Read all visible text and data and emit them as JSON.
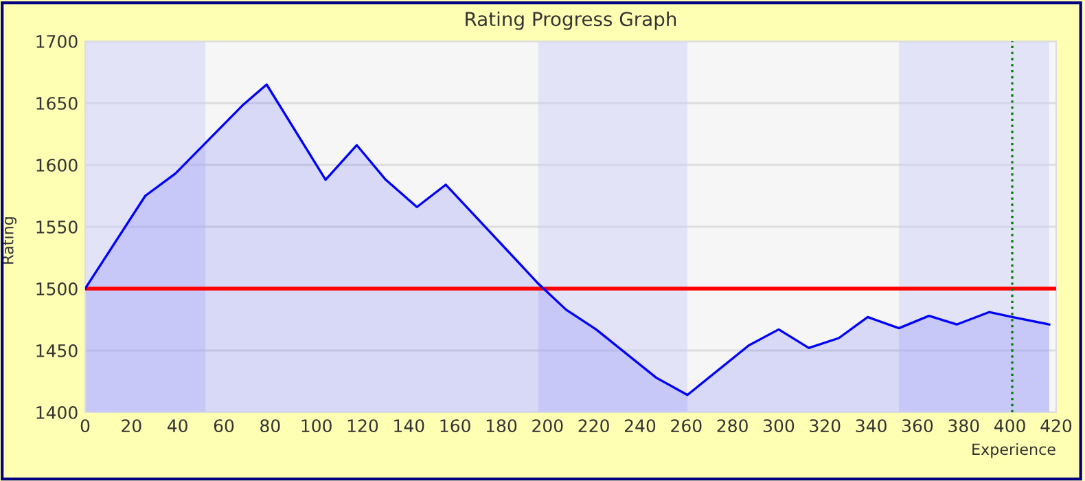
{
  "chart_data": {
    "type": "area",
    "title": "Rating Progress Graph",
    "xlabel": "Experience",
    "ylabel": "Rating",
    "x": [
      0,
      26,
      39,
      68,
      78.5,
      104,
      117.5,
      130,
      143.5,
      156,
      196,
      208,
      221,
      247,
      260.5,
      287,
      300,
      313,
      326,
      338.5,
      352,
      365,
      377,
      391,
      401,
      417
    ],
    "series": [
      {
        "color": "#0000ff",
        "values": [
          1500,
          1575,
          1593,
          1648,
          1665,
          1588,
          1616,
          1588,
          1566,
          1584,
          1504,
          1483,
          1467,
          1428,
          1414,
          1454,
          1467,
          1452,
          1460,
          1477,
          1468,
          1478,
          1471,
          1481,
          1477,
          1471
        ]
      }
    ],
    "xlim": [
      0,
      420
    ],
    "xticks": [
      0,
      20,
      40,
      60,
      80,
      100,
      120,
      140,
      160,
      180,
      200,
      220,
      240,
      260,
      280,
      300,
      320,
      340,
      360,
      380,
      400,
      420
    ],
    "ylim": [
      1400,
      1700
    ],
    "yticks": [
      1400,
      1450,
      1500,
      1550,
      1600,
      1650,
      1700
    ],
    "grid": "y",
    "ref_lines": [
      {
        "axis": "y",
        "value": 1500,
        "color": "#ff0000",
        "line_style": "solid"
      },
      {
        "axis": "x",
        "value": 401,
        "color": "#008000",
        "line_style": "dotted"
      }
    ],
    "bands": [
      {
        "axis": "x",
        "from": 0,
        "to": 52,
        "color": "#ccccfa"
      },
      {
        "axis": "x",
        "from": 196,
        "to": 260.5,
        "color": "#ccccfa"
      },
      {
        "axis": "x",
        "from": 352,
        "to": 417,
        "color": "#ccccfa"
      }
    ]
  }
}
